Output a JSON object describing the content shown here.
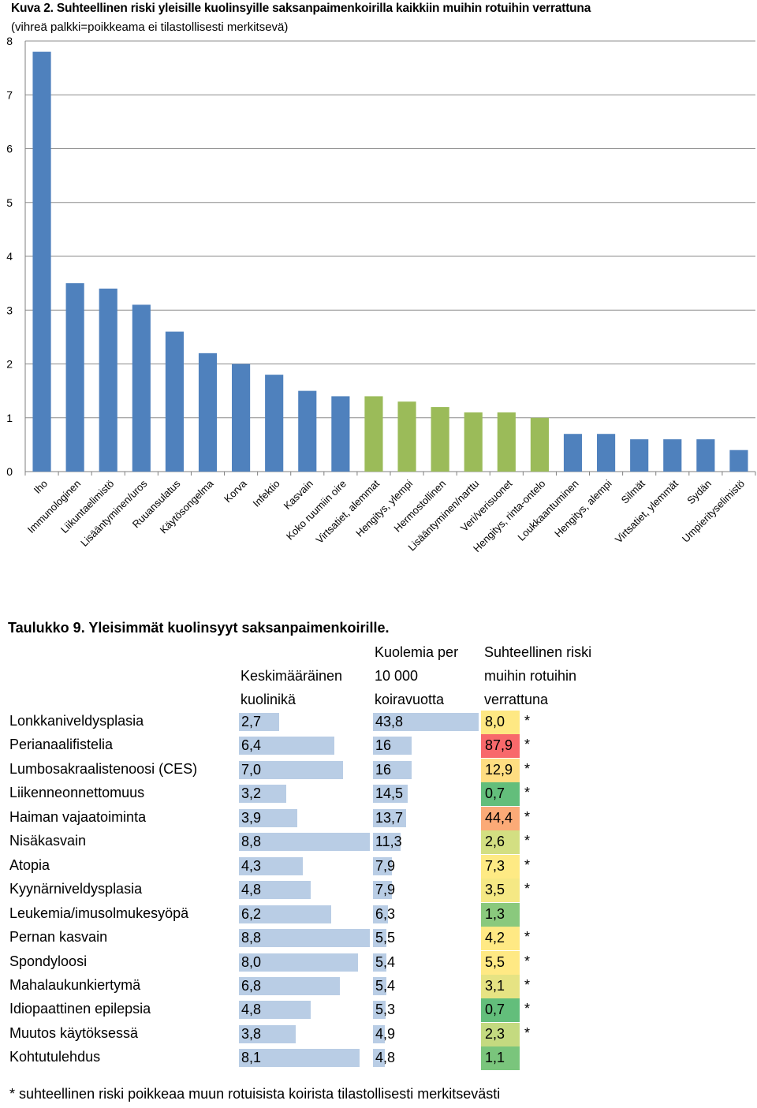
{
  "chart_data": {
    "type": "bar",
    "title": "Kuva 2. Suhteellinen riski yleisille kuolinsyille saksanpaimenkoirilla kaikkiin muihin rotuihin verrattuna",
    "subtitle": "(vihreä palkki=poikkeama ei tilastollisesti merkitsevä)",
    "ylim": [
      0,
      8
    ],
    "yticks": [
      0,
      1,
      2,
      3,
      4,
      5,
      6,
      7,
      8
    ],
    "grid": true,
    "colors": {
      "significant": "#4f81bd",
      "not_significant": "#9bbb59"
    },
    "categories": [
      "Iho",
      "Immunologinen",
      "Liikuntaelimistö",
      "Lisääntyminen/uros",
      "Ruuansulatus",
      "Käytösongelma",
      "Korva",
      "Infektio",
      "Kasvain",
      "Koko ruumiin oire",
      "Virtsatiet, alemmat",
      "Hengitys, ylempi",
      "Hermostollinen",
      "Lisääntyminen/narttu",
      "Veri/verisuonet",
      "Hengitys, rinta-ontelo",
      "Loukkaantuminen",
      "Hengitys, alempi",
      "Silmät",
      "Virtsatiet, ylemmät",
      "Sydän",
      "Umpierityselimistö"
    ],
    "values": [
      7.8,
      3.5,
      3.4,
      3.1,
      2.6,
      2.2,
      2.0,
      1.8,
      1.5,
      1.4,
      1.4,
      1.3,
      1.2,
      1.1,
      1.1,
      1.0,
      0.7,
      0.7,
      0.6,
      0.6,
      0.6,
      0.4
    ],
    "significant": [
      true,
      true,
      true,
      true,
      true,
      true,
      true,
      true,
      true,
      true,
      false,
      false,
      false,
      false,
      false,
      false,
      true,
      true,
      true,
      true,
      true,
      true
    ]
  },
  "table": {
    "title": "Taulukko 9. Yleisimmät kuolinsyyt saksanpaimenkoirille.",
    "headers": {
      "age": "Keskimääräinen\nkuolinikä",
      "deaths": "Kuolemia per\n10 000\nkoiravuotta",
      "risk": "Suhteellinen riski\nmuihin rotuihin\nverrattuna"
    },
    "max_age": 8.8,
    "max_deaths": 43.8,
    "rows": [
      {
        "name": "Lonkkaniveldysplasia",
        "age": "2,7",
        "age_num": 2.7,
        "deaths": "43,8",
        "deaths_num": 43.8,
        "risk": "8,0",
        "risk_color": "#fee883",
        "star": "*"
      },
      {
        "name": "Perianaalifistelia",
        "age": "6,4",
        "age_num": 6.4,
        "deaths": "16",
        "deaths_num": 16,
        "risk": "87,9",
        "risk_color": "#f8696b",
        "star": "*"
      },
      {
        "name": "Lumbosakraalistenoosi (CES)",
        "age": "7,0",
        "age_num": 7.0,
        "deaths": "16",
        "deaths_num": 16,
        "risk": "12,9",
        "risk_color": "#fedd81",
        "star": "*"
      },
      {
        "name": "Liikenneonnettomuus",
        "age": "3,2",
        "age_num": 3.2,
        "deaths": "14,5",
        "deaths_num": 14.5,
        "risk": "0,7",
        "risk_color": "#63be7b",
        "star": "*"
      },
      {
        "name": "Haiman vajaatoiminta",
        "age": "3,9",
        "age_num": 3.9,
        "deaths": "13,7",
        "deaths_num": 13.7,
        "risk": "44,4",
        "risk_color": "#fbaa77",
        "star": "*"
      },
      {
        "name": "Nisäkasvain",
        "age": "8,8",
        "age_num": 8.8,
        "deaths": "11,3",
        "deaths_num": 11.3,
        "risk": "2,6",
        "risk_color": "#d3df82",
        "star": "*"
      },
      {
        "name": "Atopia",
        "age": "4,3",
        "age_num": 4.3,
        "deaths": "7,9",
        "deaths_num": 7.9,
        "risk": "7,3",
        "risk_color": "#feea84",
        "star": "*"
      },
      {
        "name": "Kyynärniveldysplasia",
        "age": "4,8",
        "age_num": 4.8,
        "deaths": "7,9",
        "deaths_num": 7.9,
        "risk": "3,5",
        "risk_color": "#f5e884",
        "star": "*"
      },
      {
        "name": "Leukemia/imusolmukesyöpä",
        "age": "6,2",
        "age_num": 6.2,
        "deaths": "6,3",
        "deaths_num": 6.3,
        "risk": "1,3",
        "risk_color": "#8ac97d",
        "star": ""
      },
      {
        "name": "Pernan kasvain",
        "age": "8,8",
        "age_num": 8.8,
        "deaths": "5,5",
        "deaths_num": 5.5,
        "risk": "4,2",
        "risk_color": "#ffe984",
        "star": "*"
      },
      {
        "name": "Spondyloosi",
        "age": "8,0",
        "age_num": 8.0,
        "deaths": "5,4",
        "deaths_num": 5.4,
        "risk": "5,5",
        "risk_color": "#ffe984",
        "star": "*"
      },
      {
        "name": "Mahalaukunkiertymä",
        "age": "6,8",
        "age_num": 6.8,
        "deaths": "5,4",
        "deaths_num": 5.4,
        "risk": "3,1",
        "risk_color": "#e6e383",
        "star": "*"
      },
      {
        "name": "Idiopaattinen epilepsia",
        "age": "4,8",
        "age_num": 4.8,
        "deaths": "5,3",
        "deaths_num": 5.3,
        "risk": "0,7",
        "risk_color": "#63be7b",
        "star": "*"
      },
      {
        "name": "Muutos käytöksessä",
        "age": "3,8",
        "age_num": 3.8,
        "deaths": "4,9",
        "deaths_num": 4.9,
        "risk": "2,3",
        "risk_color": "#c4da80",
        "star": "*"
      },
      {
        "name": "Kohtutulehdus",
        "age": "8,1",
        "age_num": 8.1,
        "deaths": "4,8",
        "deaths_num": 4.8,
        "risk": "1,1",
        "risk_color": "#7ac57c",
        "star": ""
      }
    ],
    "footnote": "* suhteellinen riski poikkeaa muun rotuisista koirista tilastollisesti merkitsevästi"
  }
}
